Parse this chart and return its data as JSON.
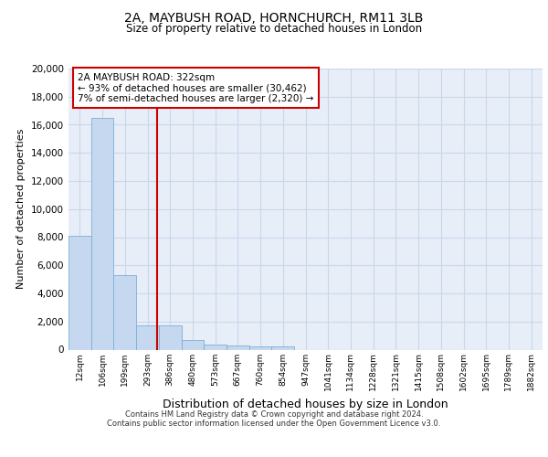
{
  "title1": "2A, MAYBUSH ROAD, HORNCHURCH, RM11 3LB",
  "title2": "Size of property relative to detached houses in London",
  "xlabel": "Distribution of detached houses by size in London",
  "ylabel": "Number of detached properties",
  "bin_labels": [
    "12sqm",
    "106sqm",
    "199sqm",
    "293sqm",
    "386sqm",
    "480sqm",
    "573sqm",
    "667sqm",
    "760sqm",
    "854sqm",
    "947sqm",
    "1041sqm",
    "1134sqm",
    "1228sqm",
    "1321sqm",
    "1415sqm",
    "1508sqm",
    "1602sqm",
    "1695sqm",
    "1789sqm",
    "1882sqm"
  ],
  "bar_values": [
    8100,
    16500,
    5300,
    1750,
    1750,
    700,
    350,
    300,
    250,
    200,
    0,
    0,
    0,
    0,
    0,
    0,
    0,
    0,
    0,
    0,
    0
  ],
  "bar_color": "#c5d8ef",
  "bar_edge_color": "#7aafd4",
  "annotation_text_line1": "2A MAYBUSH ROAD: 322sqm",
  "annotation_text_line2": "← 93% of detached houses are smaller (30,462)",
  "annotation_text_line3": "7% of semi-detached houses are larger (2,320) →",
  "annotation_box_color": "#ffffff",
  "annotation_box_edge_color": "#cc0000",
  "vline_color": "#cc0000",
  "vline_x": 3.42,
  "ylim": [
    0,
    20000
  ],
  "yticks": [
    0,
    2000,
    4000,
    6000,
    8000,
    10000,
    12000,
    14000,
    16000,
    18000,
    20000
  ],
  "grid_color": "#c8d8ea",
  "background_color": "#e8eef8",
  "footer_line1": "Contains HM Land Registry data © Crown copyright and database right 2024.",
  "footer_line2": "Contains public sector information licensed under the Open Government Licence v3.0."
}
